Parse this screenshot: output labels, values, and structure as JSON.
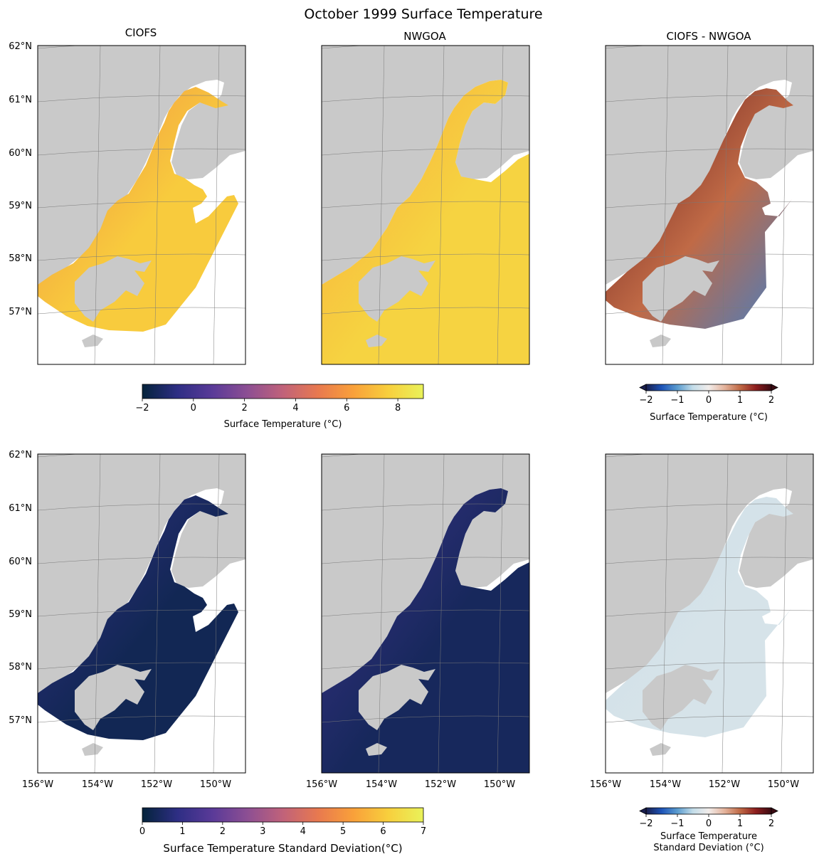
{
  "title": "October 1999 Surface Temperature",
  "columns": [
    "CIOFS",
    "NWGOA",
    "CIOFS - NWGOA"
  ],
  "chart_data": [
    {
      "type": "heatmap",
      "panel": "mean-ciofs",
      "title": "CIOFS",
      "variable": "Surface Temperature (°C)",
      "region": "ciofs",
      "colormap": "thermal",
      "value_range": [
        -2,
        9
      ],
      "typical_values": {
        "inlet": 5.5,
        "shelf": 7.5
      }
    },
    {
      "type": "heatmap",
      "panel": "mean-nwgoa",
      "title": "NWGOA",
      "variable": "Surface Temperature (°C)",
      "region": "nwgoa",
      "colormap": "thermal",
      "value_range": [
        -2,
        9
      ],
      "typical_values": {
        "inlet": 6.5,
        "shelf": 7.8
      }
    },
    {
      "type": "heatmap",
      "panel": "mean-diff",
      "title": "CIOFS - NWGOA",
      "variable": "Surface Temperature (°C)",
      "region": "diff",
      "colormap": "balance",
      "value_range": [
        -2,
        2
      ],
      "typical_values": {
        "upper_inlet": 1.8,
        "west_shore": 1.0,
        "kodiak_shelf": -1.2
      }
    },
    {
      "type": "heatmap",
      "panel": "std-ciofs",
      "title": "",
      "variable": "Surface Temperature Standard Deviation(°C)",
      "region": "ciofs",
      "colormap": "thermal",
      "value_range": [
        0,
        7
      ],
      "typical_values": {
        "inlet": 1.0,
        "shelf": 0.3
      }
    },
    {
      "type": "heatmap",
      "panel": "std-nwgoa",
      "title": "",
      "variable": "Surface Temperature Standard Deviation(°C)",
      "region": "nwgoa",
      "colormap": "thermal",
      "value_range": [
        0,
        7
      ],
      "typical_values": {
        "inlet": 1.2,
        "shelf": 0.4
      }
    },
    {
      "type": "heatmap",
      "panel": "std-diff",
      "title": "",
      "variable": "Surface Temperature Standard Deviation (°C)",
      "region": "diff",
      "colormap": "balance",
      "value_range": [
        -2,
        2
      ],
      "typical_values": {
        "inlet": -0.4,
        "shelf": -0.3
      }
    }
  ],
  "axes": {
    "lat_ticks": [
      "62°N",
      "61°N",
      "60°N",
      "59°N",
      "58°N",
      "57°N"
    ],
    "lon_ticks": [
      "156°W",
      "154°W",
      "152°W",
      "150°W"
    ]
  },
  "colorbars": [
    {
      "id": "mean-abs",
      "label": "Surface Temperature (°C)",
      "ticks": [
        "−2",
        "0",
        "2",
        "4",
        "6",
        "8"
      ],
      "range": [
        -2,
        9
      ],
      "extend": false
    },
    {
      "id": "mean-diff",
      "label": "Surface Temperature (°C)",
      "ticks": [
        "−2",
        "−1",
        "0",
        "1",
        "2"
      ],
      "range": [
        -2,
        2
      ],
      "extend": true
    },
    {
      "id": "std-abs",
      "label": "Surface Temperature Standard Deviation(°C)",
      "ticks": [
        "0",
        "1",
        "2",
        "3",
        "4",
        "5",
        "6",
        "7"
      ],
      "range": [
        0,
        7
      ],
      "extend": false
    },
    {
      "id": "std-diff",
      "label_lines": [
        "Surface Temperature",
        "Standard Deviation (°C)"
      ],
      "ticks": [
        "−2",
        "−1",
        "0",
        "1",
        "2"
      ],
      "range": [
        -2,
        2
      ],
      "extend": true
    }
  ],
  "colors": {
    "land": "#c9c9c9",
    "ocean_nodata": "#ffffff",
    "graticule": "#7a7a7a",
    "thermal": [
      "#04233b",
      "#2e2e84",
      "#5a3a98",
      "#8d4f93",
      "#c0627a",
      "#e8794f",
      "#f9a03a",
      "#f8cf3d",
      "#e9f25a"
    ],
    "balance": [
      "#1a1f4e",
      "#1d54b8",
      "#5b9ccf",
      "#c4dde9",
      "#f1ecea",
      "#e4b49d",
      "#c06a46",
      "#8e1e1e",
      "#3b0b12"
    ]
  }
}
